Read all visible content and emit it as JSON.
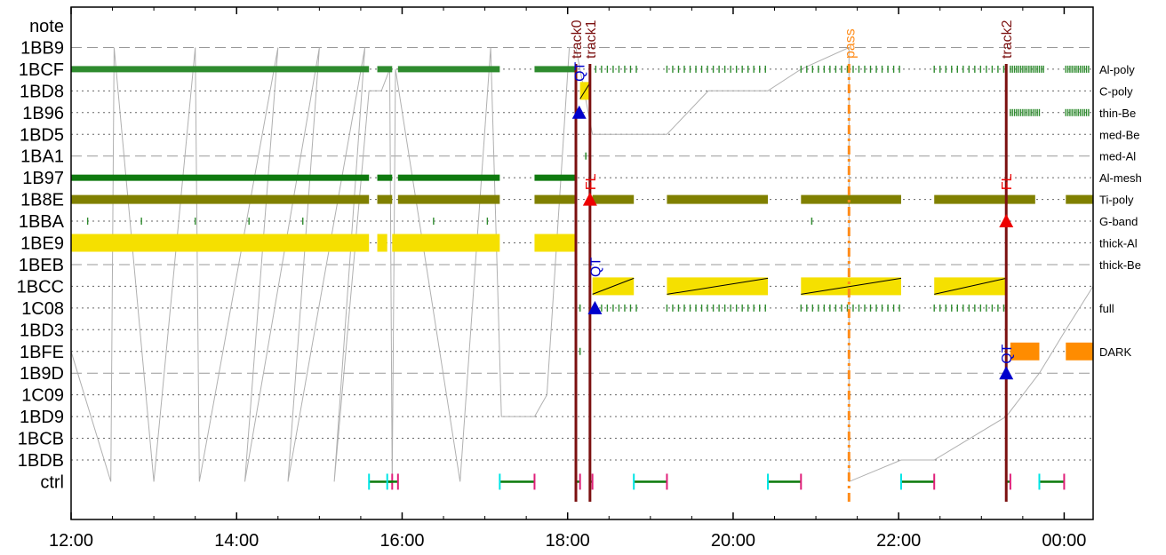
{
  "chart_data": {
    "type": "timeline",
    "xlim_hours": [
      12.0,
      24.35
    ],
    "x_ticks": [
      {
        "h": 12,
        "label": "12:00"
      },
      {
        "h": 14,
        "label": "14:00"
      },
      {
        "h": 16,
        "label": "16:00"
      },
      {
        "h": 18,
        "label": "18:00"
      },
      {
        "h": 20,
        "label": "20:00"
      },
      {
        "h": 22,
        "label": "22:00"
      },
      {
        "h": 24,
        "label": "00:00"
      }
    ],
    "rows": [
      {
        "label": "note",
        "right": "",
        "dash": "none"
      },
      {
        "label": "1BB9",
        "right": "",
        "dash": "long"
      },
      {
        "label": "1BCF",
        "right": "Al-poly",
        "dash": "short"
      },
      {
        "label": "1BD8",
        "right": "C-poly",
        "dash": "short"
      },
      {
        "label": "1B96",
        "right": "thin-Be",
        "dash": "short"
      },
      {
        "label": "1BD5",
        "right": "med-Be",
        "dash": "short"
      },
      {
        "label": "1BA1",
        "right": "med-Al",
        "dash": "long"
      },
      {
        "label": "1B97",
        "right": "Al-mesh",
        "dash": "short"
      },
      {
        "label": "1B8E",
        "right": "Ti-poly",
        "dash": "short"
      },
      {
        "label": "1BBA",
        "right": "G-band",
        "dash": "short"
      },
      {
        "label": "1BE9",
        "right": "thick-Al",
        "dash": "short"
      },
      {
        "label": "1BEB",
        "right": "thick-Be",
        "dash": "long"
      },
      {
        "label": "1BCC",
        "right": "",
        "dash": "short"
      },
      {
        "label": "1C08",
        "right": "full",
        "dash": "short"
      },
      {
        "label": "1BD3",
        "right": "",
        "dash": "short"
      },
      {
        "label": "1BFE",
        "right": "DARK",
        "dash": "short"
      },
      {
        "label": "1B9D",
        "right": "",
        "dash": "long"
      },
      {
        "label": "1C09",
        "right": "",
        "dash": "short"
      },
      {
        "label": "1BD9",
        "right": "",
        "dash": "short"
      },
      {
        "label": "1BCB",
        "right": "",
        "dash": "short"
      },
      {
        "label": "1BDB",
        "right": "",
        "dash": "short"
      },
      {
        "label": "ctrl",
        "right": "",
        "dash": "none"
      }
    ],
    "bars": [
      {
        "row": "1BCF",
        "start": 12.0,
        "end": 15.6,
        "color": "#2e8b2e",
        "thin": true
      },
      {
        "row": "1BCF",
        "start": 15.7,
        "end": 15.88,
        "color": "#2e8b2e",
        "thin": true
      },
      {
        "row": "1BCF",
        "start": 15.95,
        "end": 17.18,
        "color": "#2e8b2e",
        "thin": true
      },
      {
        "row": "1BCF",
        "start": 17.6,
        "end": 18.1,
        "color": "#2e8b2e",
        "thin": true
      },
      {
        "row": "1B97",
        "start": 12.0,
        "end": 15.6,
        "color": "#0f7a0f",
        "thin": true
      },
      {
        "row": "1B97",
        "start": 15.7,
        "end": 15.88,
        "color": "#0f7a0f",
        "thin": true
      },
      {
        "row": "1B97",
        "start": 15.95,
        "end": 17.18,
        "color": "#0f7a0f",
        "thin": true
      },
      {
        "row": "1B97",
        "start": 17.6,
        "end": 18.1,
        "color": "#0f7a0f",
        "thin": true
      },
      {
        "row": "1B8E",
        "start": 12.0,
        "end": 15.6,
        "color": "#808000",
        "thin": false
      },
      {
        "row": "1B8E",
        "start": 15.7,
        "end": 15.88,
        "color": "#808000",
        "thin": false
      },
      {
        "row": "1B8E",
        "start": 15.95,
        "end": 17.18,
        "color": "#808000",
        "thin": false
      },
      {
        "row": "1B8E",
        "start": 17.6,
        "end": 18.1,
        "color": "#808000",
        "thin": false
      },
      {
        "row": "1B8E",
        "start": 18.3,
        "end": 18.8,
        "color": "#808000",
        "thin": false
      },
      {
        "row": "1B8E",
        "start": 19.2,
        "end": 20.42,
        "color": "#808000",
        "thin": false
      },
      {
        "row": "1B8E",
        "start": 20.82,
        "end": 22.03,
        "color": "#808000",
        "thin": false
      },
      {
        "row": "1B8E",
        "start": 22.43,
        "end": 23.65,
        "color": "#808000",
        "thin": false
      },
      {
        "row": "1B8E",
        "start": 24.02,
        "end": 24.35,
        "color": "#808000",
        "thin": false
      },
      {
        "row": "1BE9",
        "start": 12.0,
        "end": 15.6,
        "color": "#f5e000",
        "thin": false,
        "tall": true
      },
      {
        "row": "1BE9",
        "start": 15.7,
        "end": 15.82,
        "color": "#f5e000",
        "thin": false,
        "tall": true
      },
      {
        "row": "1BE9",
        "start": 15.88,
        "end": 17.18,
        "color": "#f5e000",
        "thin": false,
        "tall": true
      },
      {
        "row": "1BE9",
        "start": 17.6,
        "end": 18.1,
        "color": "#f5e000",
        "thin": false,
        "tall": true
      },
      {
        "row": "1BCC",
        "start": 18.3,
        "end": 18.8,
        "color": "#f5e000",
        "thin": false,
        "tall": true,
        "slope": true
      },
      {
        "row": "1BCC",
        "start": 19.2,
        "end": 20.42,
        "color": "#f5e000",
        "thin": false,
        "tall": true,
        "slope": true
      },
      {
        "row": "1BCC",
        "start": 20.82,
        "end": 22.03,
        "color": "#f5e000",
        "thin": false,
        "tall": true,
        "slope": true
      },
      {
        "row": "1BCC",
        "start": 22.43,
        "end": 23.3,
        "color": "#f5e000",
        "thin": false,
        "tall": true,
        "slope": true
      },
      {
        "row": "1BD8",
        "start": 18.15,
        "end": 18.27,
        "color": "#f5e000",
        "thin": false,
        "tall": true,
        "slope": true
      },
      {
        "row": "1BFE",
        "start": 23.35,
        "end": 23.7,
        "color": "#ff8c00",
        "thin": false,
        "tall": true
      },
      {
        "row": "1BFE",
        "start": 24.02,
        "end": 24.35,
        "color": "#ff8c00",
        "thin": false,
        "tall": true
      }
    ],
    "tick_segments": [
      {
        "row": "1BCF",
        "start": 18.27,
        "end": 18.85,
        "step": 0.07,
        "color": "#2e8b2e"
      },
      {
        "row": "1BCF",
        "start": 19.2,
        "end": 20.42,
        "step": 0.07,
        "color": "#2e8b2e"
      },
      {
        "row": "1BCF",
        "start": 20.82,
        "end": 22.03,
        "step": 0.07,
        "color": "#2e8b2e"
      },
      {
        "row": "1BCF",
        "start": 22.43,
        "end": 23.3,
        "step": 0.07,
        "color": "#2e8b2e"
      },
      {
        "row": "1BCF",
        "start": 23.35,
        "end": 23.75,
        "step": 0.025,
        "color": "#2e8b2e"
      },
      {
        "row": "1BCF",
        "start": 24.02,
        "end": 24.3,
        "step": 0.025,
        "color": "#2e8b2e"
      },
      {
        "row": "1B96",
        "start": 23.35,
        "end": 23.7,
        "step": 0.025,
        "color": "#2e8b2e"
      },
      {
        "row": "1B96",
        "start": 24.02,
        "end": 24.3,
        "step": 0.025,
        "color": "#2e8b2e"
      },
      {
        "row": "1BBA",
        "start": 12.2,
        "end": 15.4,
        "step": 0.65,
        "color": "#2e8b2e"
      },
      {
        "row": "1BBA",
        "start": 16.38,
        "end": 17.05,
        "step": 0.65,
        "color": "#2e8b2e"
      },
      {
        "row": "1C08",
        "start": 18.27,
        "end": 18.85,
        "step": 0.07,
        "color": "#2e8b2e"
      },
      {
        "row": "1C08",
        "start": 19.2,
        "end": 20.42,
        "step": 0.07,
        "color": "#2e8b2e"
      },
      {
        "row": "1C08",
        "start": 20.82,
        "end": 22.03,
        "step": 0.07,
        "color": "#2e8b2e"
      },
      {
        "row": "1C08",
        "start": 22.43,
        "end": 23.3,
        "step": 0.07,
        "color": "#2e8b2e"
      }
    ],
    "single_ticks": [
      {
        "row": "1BA1",
        "h": 18.22
      },
      {
        "row": "1BBA",
        "h": 20.95
      },
      {
        "row": "1BFE",
        "h": 18.15
      },
      {
        "row": "1C08",
        "h": 18.15
      }
    ],
    "vlines": [
      {
        "h": 18.1,
        "label": "track0",
        "color": "#7b1010",
        "style": "solid"
      },
      {
        "h": 18.27,
        "label": "track1",
        "color": "#7b1010",
        "style": "solid"
      },
      {
        "h": 21.4,
        "label": "pass",
        "color": "#ff8c1a",
        "style": "dashdot"
      },
      {
        "h": 23.3,
        "label": "track2",
        "color": "#7b1010",
        "style": "solid"
      }
    ],
    "markers": [
      {
        "h": 18.14,
        "row": "1B96",
        "shape": "triangle",
        "color": "#0000cc",
        "text": "QT",
        "text_row": "1BCF"
      },
      {
        "h": 18.27,
        "row": "1B8E",
        "shape": "triangle",
        "color": "#ee0000",
        "text": "FL",
        "text_row": "1B97"
      },
      {
        "h": 18.33,
        "row": "1C08",
        "shape": "triangle",
        "color": "#0000cc",
        "text": "QT",
        "text_row": "1BEB"
      },
      {
        "h": 23.3,
        "row": "1BBA",
        "shape": "triangle",
        "color": "#ee0000",
        "text": "FL",
        "text_row": "1B97"
      },
      {
        "h": 23.3,
        "row": "1B9D",
        "shape": "triangle",
        "color": "#0000cc",
        "text": "QT",
        "text_row": "1BFE"
      }
    ],
    "ctrl_segments": [
      {
        "start": 15.6,
        "end": 15.88
      },
      {
        "start": 15.82,
        "end": 15.95
      },
      {
        "start": 17.18,
        "end": 17.6
      },
      {
        "start": 18.1,
        "end": 18.15
      },
      {
        "start": 18.27,
        "end": 18.3
      },
      {
        "start": 18.8,
        "end": 19.2
      },
      {
        "start": 20.42,
        "end": 20.82
      },
      {
        "start": 22.03,
        "end": 22.43
      },
      {
        "start": 23.3,
        "end": 23.35
      },
      {
        "start": 23.7,
        "end": 24.0
      }
    ],
    "gray_sawtooth": [
      [
        12.0,
        "1BFE"
      ],
      [
        12.48,
        "ctrl"
      ],
      [
        12.52,
        "1BB9"
      ],
      [
        13.0,
        "ctrl"
      ],
      [
        13.5,
        "1BB9"
      ],
      [
        13.55,
        "ctrl"
      ],
      [
        14.5,
        "1BB9"
      ],
      [
        14.1,
        "ctrl"
      ],
      [
        15.0,
        "1BB9"
      ],
      [
        14.62,
        "ctrl"
      ],
      [
        15.55,
        "1BB9"
      ],
      [
        15.18,
        "ctrl"
      ],
      [
        15.6,
        "1BD8"
      ],
      [
        15.75,
        "1BD8"
      ],
      [
        15.85,
        "1BCF"
      ],
      [
        15.88,
        "ctrl"
      ],
      [
        15.92,
        "1BCF"
      ],
      [
        16.7,
        "ctrl"
      ],
      [
        17.07,
        "1BB9"
      ],
      [
        17.2,
        "1BD9"
      ],
      [
        17.6,
        "1BD9"
      ],
      [
        17.75,
        "1C09"
      ],
      [
        18.02,
        "1BB9"
      ],
      [
        18.1,
        "1BB9"
      ],
      [
        18.3,
        "1BD5"
      ],
      [
        18.8,
        "1BD5"
      ],
      [
        19.2,
        "1BD5"
      ],
      [
        19.7,
        "1BD8"
      ],
      [
        20.42,
        "1BD8"
      ],
      [
        20.82,
        "1BCF"
      ],
      [
        21.4,
        "1BB9"
      ],
      [
        21.4,
        "ctrl"
      ],
      [
        22.03,
        "1BDB"
      ],
      [
        22.43,
        "1BDB"
      ],
      [
        23.3,
        "1BD9"
      ],
      [
        23.7,
        "1B9D"
      ],
      [
        24.02,
        "1BD3"
      ],
      [
        24.35,
        "1BCC"
      ]
    ]
  }
}
